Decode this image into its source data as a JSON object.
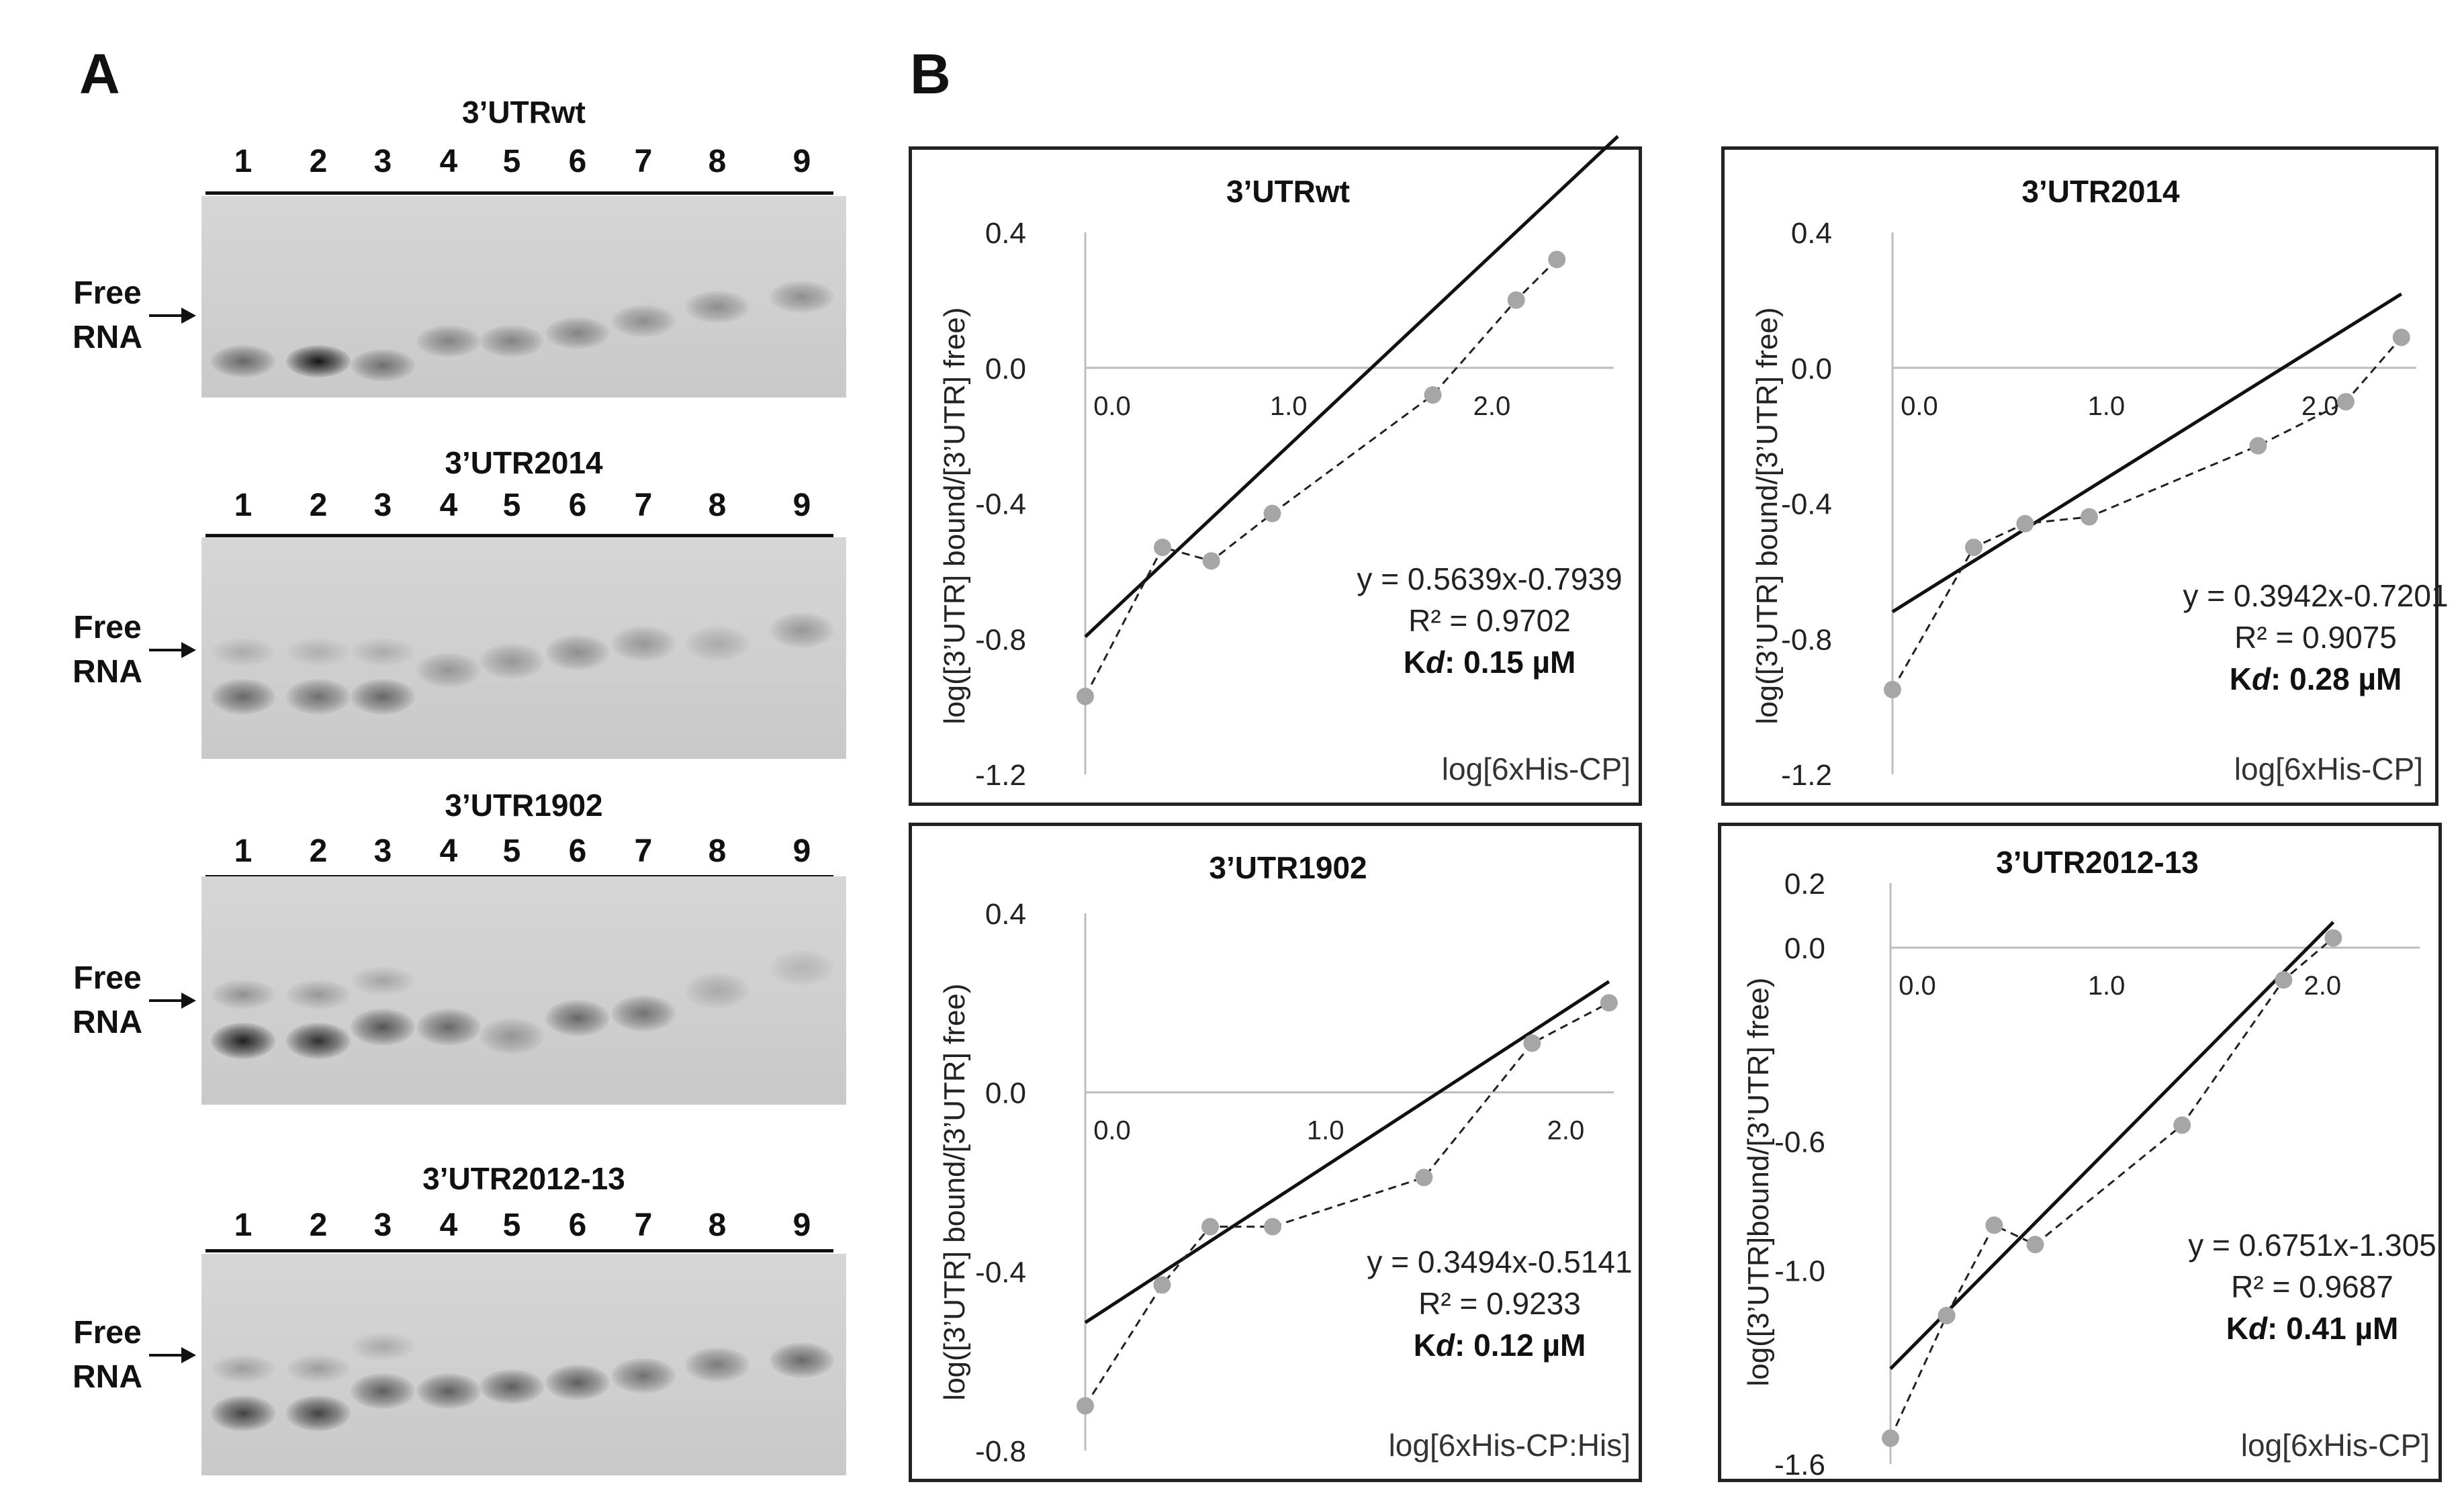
{
  "panel_a": {
    "letter": "A",
    "free_label": [
      "Free",
      "RNA"
    ],
    "gels": [
      {
        "title": "3’UTRwt",
        "lanes": [
          "1",
          "2",
          "3",
          "4",
          "5",
          "6",
          "7",
          "8",
          "9"
        ]
      },
      {
        "title": "3’UTR2014",
        "lanes": [
          "1",
          "2",
          "3",
          "4",
          "5",
          "6",
          "7",
          "8",
          "9"
        ]
      },
      {
        "title": "3’UTR1902",
        "lanes": [
          "1",
          "2",
          "3",
          "4",
          "5",
          "6",
          "7",
          "8",
          "9"
        ]
      },
      {
        "title": "3’UTR2012-13",
        "lanes": [
          "1",
          "2",
          "3",
          "4",
          "5",
          "6",
          "7",
          "8",
          "9"
        ]
      }
    ]
  },
  "panel_b": {
    "letter": "B"
  },
  "chart_data": [
    {
      "type": "scatter",
      "title": "3’UTRwt",
      "xlabel": "log[6xHis-CP]",
      "ylabel": "log([3’UTR] bound/[3’UTR] free)",
      "xlim": [
        0,
        2.6
      ],
      "ylim": [
        -1.2,
        0.4
      ],
      "yticks": [
        "0.4",
        "0.0",
        "-0.4",
        "-0.8",
        "-1.2"
      ],
      "xticks": [
        "0.0",
        "1.0",
        "2.0"
      ],
      "series": [
        {
          "name": "data",
          "x": [
            0.0,
            0.38,
            0.62,
            0.92,
            1.71,
            2.12,
            2.32
          ],
          "y": [
            -0.97,
            -0.53,
            -0.57,
            -0.43,
            -0.08,
            0.2,
            0.32
          ]
        }
      ],
      "fit": {
        "slope": 0.5639,
        "intercept": -0.7939,
        "x_range": [
          0.0,
          2.62
        ]
      },
      "equation": "y = 0.5639x-0.7939",
      "r2": "R² = 0.9702",
      "kd_label": "Kd",
      "kd_value": ": 0.15 µM"
    },
    {
      "type": "scatter",
      "title": "3’UTR2014",
      "xlabel": "log[6xHis-CP]",
      "ylabel": "log([3’UTR] bound/[3’UTR] free)",
      "xlim": [
        0,
        2.45
      ],
      "ylim": [
        -1.2,
        0.4
      ],
      "yticks": [
        "0.4",
        "0.0",
        "-0.4",
        "-0.8",
        "-1.2"
      ],
      "xticks": [
        "0.0",
        "1.0",
        "2.0"
      ],
      "series": [
        {
          "name": "data",
          "x": [
            0.0,
            0.38,
            0.62,
            0.92,
            1.71,
            2.12,
            2.38
          ],
          "y": [
            -0.95,
            -0.53,
            -0.46,
            -0.44,
            -0.23,
            -0.1,
            0.09
          ]
        }
      ],
      "fit": {
        "slope": 0.3942,
        "intercept": -0.7201,
        "x_range": [
          0.0,
          2.38
        ]
      },
      "equation": "y = 0.3942x-0.7201",
      "r2": "R² = 0.9075",
      "kd_label": "Kd",
      "kd_value": ": 0.28 µM"
    },
    {
      "type": "scatter",
      "title": "3’UTR1902",
      "xlabel": "log[6xHis-CP:His]",
      "ylabel": "log([3’UTR] bound/[3’UTR] free)",
      "xlim": [
        0,
        2.2
      ],
      "ylim": [
        -0.8,
        0.4
      ],
      "yticks": [
        "0.4",
        "0.0",
        "-0.4",
        "-0.8"
      ],
      "xticks": [
        "0.0",
        "1.0",
        "2.0"
      ],
      "series": [
        {
          "name": "data",
          "x": [
            0.0,
            0.32,
            0.52,
            0.78,
            1.41,
            1.86,
            2.18
          ],
          "y": [
            -0.7,
            -0.43,
            -0.3,
            -0.3,
            -0.19,
            0.11,
            0.2
          ]
        }
      ],
      "fit": {
        "slope": 0.3494,
        "intercept": -0.5141,
        "x_range": [
          0.0,
          2.18
        ]
      },
      "equation": "y = 0.3494x-0.5141",
      "r2": "R² = 0.9233",
      "kd_label": "Kd",
      "kd_value": ": 0.12 µM"
    },
    {
      "type": "scatter",
      "title": "3’UTR2012-13",
      "xlabel": "log[6xHis-CP]",
      "ylabel": "log([3’UTR]bound/[3’UTR] free)",
      "xlim": [
        0,
        2.45
      ],
      "ylim": [
        -1.6,
        0.2
      ],
      "yticks": [
        "0.2",
        "0.0",
        "-0.6",
        "-1.0",
        "-1.6"
      ],
      "xticks": [
        "0.0",
        "1.0",
        "2.0"
      ],
      "series": [
        {
          "name": "data",
          "x": [
            0.0,
            0.26,
            0.48,
            0.67,
            1.35,
            1.82,
            2.05
          ],
          "y": [
            -1.52,
            -1.14,
            -0.86,
            -0.92,
            -0.55,
            -0.1,
            0.03
          ]
        }
      ],
      "fit": {
        "slope": 0.6751,
        "intercept": -1.305,
        "x_range": [
          0.0,
          2.05
        ]
      },
      "equation": "y = 0.6751x-1.305",
      "r2": "R² = 0.9687",
      "kd_label": "Kd",
      "kd_value": ": 0.41 µM"
    }
  ]
}
